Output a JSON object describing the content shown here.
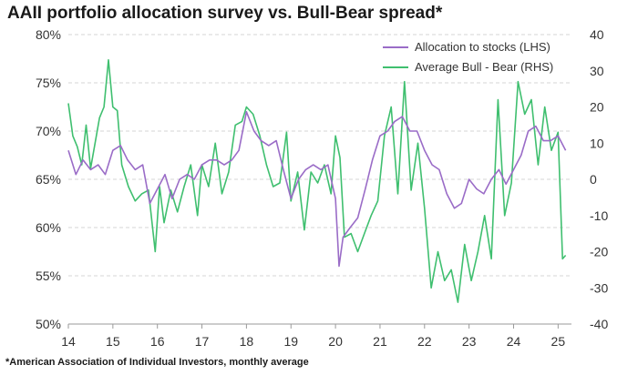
{
  "chart_data": {
    "type": "line",
    "title": "AAII portfolio allocation survey vs. Bull-Bear spread*",
    "footnote": "*American Association of Individual Investors, monthly average",
    "x_ticks": [
      "14",
      "15",
      "16",
      "17",
      "18",
      "19",
      "20",
      "21",
      "22",
      "23",
      "24",
      "25"
    ],
    "xlim": [
      2014,
      2025.3
    ],
    "y_left": {
      "ticks": [
        "50%",
        "55%",
        "60%",
        "65%",
        "70%",
        "75%",
        "80%"
      ],
      "lim": [
        50,
        80
      ]
    },
    "y_right": {
      "ticks": [
        "-40",
        "-30",
        "-20",
        "-10",
        "0",
        "10",
        "20",
        "30",
        "40"
      ],
      "lim": [
        -40,
        40
      ]
    },
    "grid": "horizontal dashed",
    "legend_position": "top-right",
    "series": [
      {
        "name": "Allocation to stocks (LHS)",
        "axis": "left",
        "color": "#9a6cc7",
        "x": [
          2014.0,
          2014.17,
          2014.33,
          2014.5,
          2014.67,
          2014.83,
          2015.0,
          2015.17,
          2015.33,
          2015.5,
          2015.67,
          2015.83,
          2016.0,
          2016.17,
          2016.33,
          2016.5,
          2016.67,
          2016.83,
          2017.0,
          2017.17,
          2017.33,
          2017.5,
          2017.67,
          2017.83,
          2018.0,
          2018.17,
          2018.33,
          2018.5,
          2018.67,
          2018.83,
          2019.0,
          2019.17,
          2019.33,
          2019.5,
          2019.67,
          2019.83,
          2020.0,
          2020.08,
          2020.17,
          2020.33,
          2020.5,
          2020.67,
          2020.83,
          2021.0,
          2021.17,
          2021.33,
          2021.5,
          2021.67,
          2021.83,
          2022.0,
          2022.17,
          2022.33,
          2022.5,
          2022.67,
          2022.83,
          2023.0,
          2023.17,
          2023.33,
          2023.5,
          2023.67,
          2023.83,
          2024.0,
          2024.17,
          2024.33,
          2024.5,
          2024.67,
          2024.83,
          2025.0,
          2025.17
        ],
        "values": [
          68,
          65.5,
          67,
          66,
          66.5,
          65.5,
          68,
          68.5,
          67,
          66,
          66.5,
          62.5,
          64,
          65.5,
          63,
          65,
          65.5,
          65,
          66.5,
          67,
          67,
          66.5,
          67,
          68,
          72,
          70,
          69,
          68.5,
          69,
          66,
          63,
          65,
          66,
          66.5,
          66,
          66.5,
          63,
          56,
          59,
          60,
          61,
          64,
          67,
          69.5,
          70,
          71,
          71.5,
          70,
          70,
          68,
          66.5,
          66,
          63.5,
          62,
          62.5,
          65,
          64,
          63.5,
          65,
          66,
          64.5,
          66,
          67.5,
          70,
          70.5,
          69,
          69,
          69.5,
          68
        ]
      },
      {
        "name": "Average Bull - Bear (RHS)",
        "axis": "right",
        "color": "#3fbf6f",
        "x": [
          2014.0,
          2014.1,
          2014.2,
          2014.3,
          2014.4,
          2014.5,
          2014.6,
          2014.7,
          2014.8,
          2014.9,
          2015.0,
          2015.1,
          2015.2,
          2015.35,
          2015.5,
          2015.65,
          2015.8,
          2015.95,
          2016.05,
          2016.15,
          2016.3,
          2016.45,
          2016.6,
          2016.75,
          2016.9,
          2017.0,
          2017.15,
          2017.3,
          2017.45,
          2017.6,
          2017.75,
          2017.9,
          2018.0,
          2018.15,
          2018.3,
          2018.45,
          2018.6,
          2018.75,
          2018.9,
          2019.0,
          2019.15,
          2019.3,
          2019.45,
          2019.6,
          2019.75,
          2019.9,
          2020.0,
          2020.1,
          2020.2,
          2020.35,
          2020.5,
          2020.65,
          2020.8,
          2020.95,
          2021.1,
          2021.25,
          2021.4,
          2021.55,
          2021.7,
          2021.85,
          2022.0,
          2022.15,
          2022.3,
          2022.45,
          2022.6,
          2022.75,
          2022.9,
          2023.05,
          2023.2,
          2023.35,
          2023.5,
          2023.65,
          2023.8,
          2023.95,
          2024.1,
          2024.25,
          2024.4,
          2024.55,
          2024.7,
          2024.85,
          2025.0,
          2025.1,
          2025.17
        ],
        "values": [
          21,
          12,
          9,
          4,
          15,
          3,
          10,
          17,
          20,
          33,
          20,
          19,
          4,
          -2,
          -6,
          -4,
          -3,
          -20,
          -2,
          -12,
          -3,
          -9,
          -2,
          4,
          -10,
          4,
          -2,
          10,
          -4,
          2,
          15,
          16,
          20,
          18,
          12,
          4,
          -2,
          -1,
          13,
          -6,
          2,
          -14,
          2,
          -1,
          4,
          -4,
          12,
          6,
          -16,
          -15,
          -20,
          -15,
          -10,
          -6,
          12,
          20,
          -4,
          27,
          -3,
          10,
          -8,
          -30,
          -20,
          -28,
          -25,
          -34,
          -18,
          -28,
          -20,
          -10,
          -22,
          22,
          -10,
          -1,
          27,
          18,
          22,
          4,
          20,
          8,
          13,
          -22,
          -21
        ]
      }
    ]
  }
}
